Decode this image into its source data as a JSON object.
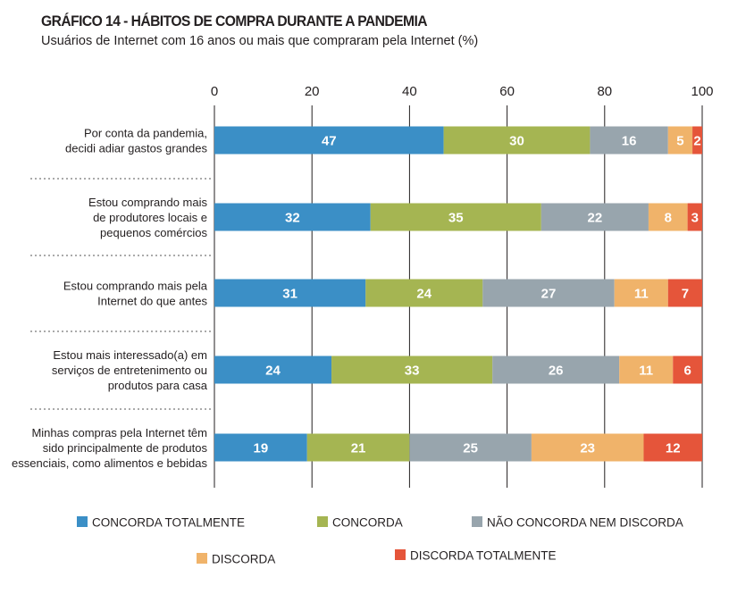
{
  "title": "GRÁFICO 14 - HÁBITOS DE COMPRA DURANTE A PANDEMIA",
  "subtitle": "Usuários de Internet com 16 anos ou mais que compraram pela Internet (%)",
  "colors": [
    "#3b8fc6",
    "#a5b552",
    "#98a5ad",
    "#f0b36a",
    "#e5553a"
  ],
  "chart_data": {
    "type": "bar",
    "orientation": "horizontal",
    "stacked": true,
    "xlim": [
      0,
      100
    ],
    "x_ticks": [
      "0",
      "20",
      "40",
      "60",
      "80",
      "100"
    ],
    "grid": true,
    "legend_position": "bottom",
    "categories": [
      [
        "Por conta da pandemia,",
        "decidi adiar gastos grandes"
      ],
      [
        "Estou comprando mais",
        "de produtores locais e",
        "pequenos comércios"
      ],
      [
        "Estou comprando mais pela",
        "Internet do que antes"
      ],
      [
        "Estou mais interessado(a) em",
        "serviços de entretenimento ou",
        "produtos para casa"
      ],
      [
        "Minhas compras pela Internet têm",
        "sido principalmente de produtos",
        "essenciais, como alimentos e bebidas"
      ]
    ],
    "series": [
      {
        "name": "CONCORDA TOTALMENTE",
        "values": [
          47,
          32,
          31,
          24,
          19
        ]
      },
      {
        "name": "CONCORDA",
        "values": [
          30,
          35,
          24,
          33,
          21
        ]
      },
      {
        "name": "NÃO CONCORDA NEM DISCORDA",
        "values": [
          16,
          22,
          27,
          26,
          25
        ]
      },
      {
        "name": "DISCORDA",
        "values": [
          5,
          8,
          11,
          11,
          23
        ]
      },
      {
        "name": "DISCORDA TOTALMENTE",
        "values": [
          2,
          3,
          7,
          6,
          12
        ]
      }
    ]
  }
}
